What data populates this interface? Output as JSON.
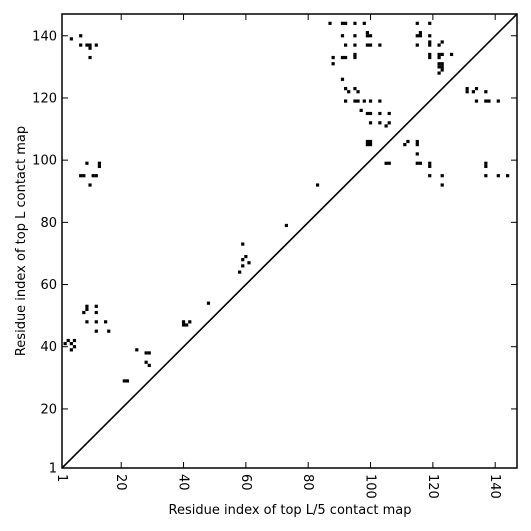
{
  "chart_data": {
    "type": "scatter",
    "title": "",
    "xlabel": "Residue index of top L/5 contact map",
    "ylabel": "Residue index of top L contact map",
    "xlim": [
      1,
      147
    ],
    "ylim": [
      1,
      147
    ],
    "x_ticks": [
      "1",
      "20",
      "40",
      "60",
      "80",
      "100",
      "120",
      "140"
    ],
    "y_ticks": [
      "1",
      "20",
      "40",
      "60",
      "80",
      "100",
      "120",
      "140"
    ],
    "diagonal": true,
    "grid": false,
    "marker_color": "#000000",
    "points": [
      [
        2,
        41
      ],
      [
        3,
        42
      ],
      [
        4,
        41
      ],
      [
        5,
        40
      ],
      [
        5,
        42
      ],
      [
        4,
        39
      ],
      [
        4,
        139
      ],
      [
        7,
        140
      ],
      [
        7,
        137
      ],
      [
        9,
        137
      ],
      [
        10,
        136
      ],
      [
        10,
        137
      ],
      [
        12,
        137
      ],
      [
        10,
        133
      ],
      [
        7,
        95
      ],
      [
        8,
        95
      ],
      [
        9,
        99
      ],
      [
        10,
        92
      ],
      [
        11,
        95
      ],
      [
        12,
        95
      ],
      [
        13,
        98
      ],
      [
        13,
        99
      ],
      [
        8,
        51
      ],
      [
        9,
        52
      ],
      [
        9,
        53
      ],
      [
        12,
        51
      ],
      [
        12,
        53
      ],
      [
        9,
        48
      ],
      [
        12,
        48
      ],
      [
        15,
        48
      ],
      [
        12,
        45
      ],
      [
        16,
        45
      ],
      [
        21,
        29
      ],
      [
        22,
        29
      ],
      [
        25,
        39
      ],
      [
        28,
        38
      ],
      [
        29,
        38
      ],
      [
        28,
        35
      ],
      [
        29,
        34
      ],
      [
        40,
        47
      ],
      [
        41,
        47
      ],
      [
        42,
        48
      ],
      [
        40,
        48
      ],
      [
        48,
        54
      ],
      [
        58,
        64
      ],
      [
        59,
        73
      ],
      [
        59,
        68
      ],
      [
        60,
        69
      ],
      [
        59,
        66
      ],
      [
        61,
        67
      ],
      [
        73,
        79
      ],
      [
        83,
        92
      ],
      [
        87,
        144
      ],
      [
        88,
        133
      ],
      [
        88,
        131
      ],
      [
        91,
        144
      ],
      [
        92,
        144
      ],
      [
        91,
        140
      ],
      [
        92,
        137
      ],
      [
        91,
        133
      ],
      [
        92,
        133
      ],
      [
        91,
        126
      ],
      [
        92,
        123
      ],
      [
        93,
        122
      ],
      [
        92,
        119
      ],
      [
        95,
        144
      ],
      [
        95,
        140
      ],
      [
        95,
        137
      ],
      [
        95,
        134
      ],
      [
        95,
        133
      ],
      [
        95,
        123
      ],
      [
        96,
        122
      ],
      [
        95,
        119
      ],
      [
        96,
        119
      ],
      [
        97,
        116
      ],
      [
        98,
        144
      ],
      [
        99,
        141
      ],
      [
        99,
        140
      ],
      [
        100,
        140
      ],
      [
        99,
        137
      ],
      [
        100,
        137
      ],
      [
        103,
        137
      ],
      [
        98,
        119
      ],
      [
        100,
        119
      ],
      [
        103,
        119
      ],
      [
        100,
        115
      ],
      [
        99,
        115
      ],
      [
        103,
        115
      ],
      [
        106,
        115
      ],
      [
        100,
        112
      ],
      [
        103,
        112
      ],
      [
        105,
        111
      ],
      [
        106,
        112
      ],
      [
        99,
        106
      ],
      [
        100,
        106
      ],
      [
        99,
        105
      ],
      [
        100,
        105
      ],
      [
        105,
        99
      ],
      [
        106,
        99
      ],
      [
        111,
        105
      ],
      [
        112,
        106
      ],
      [
        115,
        144
      ],
      [
        116,
        141
      ],
      [
        115,
        140
      ],
      [
        116,
        140
      ],
      [
        115,
        137
      ],
      [
        115,
        106
      ],
      [
        115,
        105
      ],
      [
        115,
        102
      ],
      [
        115,
        99
      ],
      [
        116,
        99
      ],
      [
        119,
        144
      ],
      [
        119,
        140
      ],
      [
        119,
        138
      ],
      [
        119,
        137
      ],
      [
        119,
        134
      ],
      [
        119,
        133
      ],
      [
        122,
        137
      ],
      [
        123,
        138
      ],
      [
        122,
        134
      ],
      [
        123,
        134
      ],
      [
        122,
        133
      ],
      [
        126,
        134
      ],
      [
        122,
        131
      ],
      [
        123,
        131
      ],
      [
        122,
        130
      ],
      [
        123,
        130
      ],
      [
        122,
        128
      ],
      [
        123,
        129
      ],
      [
        119,
        99
      ],
      [
        119,
        98
      ],
      [
        119,
        95
      ],
      [
        123,
        95
      ],
      [
        123,
        92
      ],
      [
        131,
        123
      ],
      [
        131,
        122
      ],
      [
        134,
        123
      ],
      [
        133,
        122
      ],
      [
        134,
        119
      ],
      [
        137,
        122
      ],
      [
        137,
        119
      ],
      [
        138,
        119
      ],
      [
        141,
        119
      ],
      [
        137,
        99
      ],
      [
        137,
        98
      ],
      [
        137,
        95
      ],
      [
        141,
        95
      ],
      [
        144,
        95
      ]
    ]
  }
}
